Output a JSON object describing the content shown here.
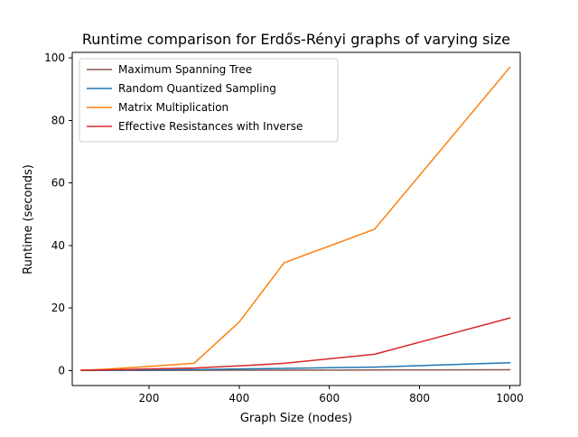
{
  "chart_data": {
    "type": "line",
    "title": "Runtime comparison for Erdős-Rényi graphs of varying size",
    "xlabel": "Graph Size (nodes)",
    "ylabel": "Runtime (seconds)",
    "xlim": [
      30,
      1023
    ],
    "ylim": [
      -4.8,
      101.8
    ],
    "xticks": [
      200,
      400,
      600,
      800,
      1000
    ],
    "yticks": [
      0,
      20,
      40,
      60,
      80,
      100
    ],
    "x": [
      50,
      100,
      200,
      300,
      400,
      500,
      700,
      1000
    ],
    "grid": false,
    "legend_position": "top-left",
    "series": [
      {
        "name": "Maximum Spanning Tree",
        "color": "#8c564b",
        "values": [
          0.02,
          0.03,
          0.05,
          0.07,
          0.1,
          0.12,
          0.18,
          0.25
        ]
      },
      {
        "name": "Random Quantized Sampling",
        "color": "#1f77b4",
        "values": [
          0.05,
          0.1,
          0.2,
          0.3,
          0.5,
          0.7,
          1.1,
          2.5
        ]
      },
      {
        "name": "Matrix Multiplication",
        "color": "#ff7f0e",
        "values": [
          0.1,
          0.4,
          1.3,
          2.3,
          15.5,
          34.5,
          45.2,
          97.0
        ]
      },
      {
        "name": "Effective Resistances with Inverse",
        "color": "#d62728",
        "values": [
          0.1,
          0.2,
          0.5,
          0.8,
          1.5,
          2.3,
          5.2,
          16.8
        ]
      }
    ]
  }
}
